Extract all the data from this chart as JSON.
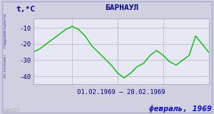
{
  "title": "БАРНАУЛ",
  "ylabel": "t,°C",
  "date_range": "01.02.1969 – 28.02.1969",
  "footer": "февраль, 1969",
  "source": "источник:  гидрометцентр",
  "watermark": "lab127",
  "ylim": [
    -45,
    -4
  ],
  "yticks": [
    -40,
    -30,
    -20,
    -10
  ],
  "bg_outer": "#d0d0e0",
  "bg_inner": "#e8e8f5",
  "line_color": "#00bb00",
  "title_color": "#000080",
  "footer_color": "#0000cc",
  "label_color": "#000080",
  "source_color": "#4444aa",
  "grid_color": "#bbbbcc",
  "days": [
    1,
    2,
    3,
    4,
    5,
    6,
    7,
    8,
    9,
    10,
    11,
    12,
    13,
    14,
    15,
    16,
    17,
    18,
    19,
    20,
    21,
    22,
    23,
    24,
    25,
    26,
    27,
    28
  ],
  "temps": [
    -25,
    -23,
    -20,
    -17,
    -14,
    -11,
    -9,
    -11,
    -15,
    -21,
    -25,
    -29,
    -33,
    -38,
    -41,
    -38,
    -34,
    -32,
    -27,
    -24,
    -27,
    -31,
    -33,
    -30,
    -27,
    -15,
    -20,
    -25
  ]
}
